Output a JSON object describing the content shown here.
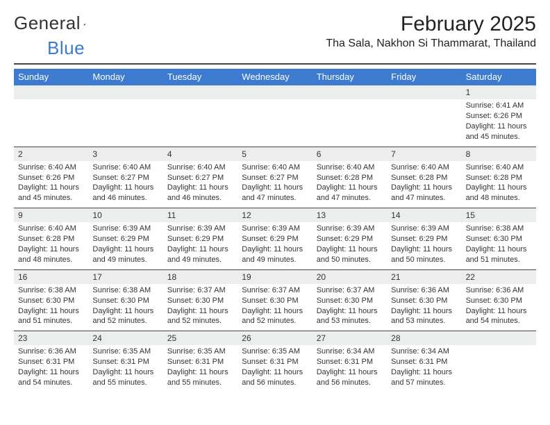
{
  "logo": {
    "text1": "General",
    "text2": "Blue"
  },
  "title": "February 2025",
  "location": "Tha Sala, Nakhon Si Thammarat, Thailand",
  "colors": {
    "headerBar": "#3d7bd0",
    "dayStripe": "#eceded",
    "ruleLine": "#444444",
    "text": "#333333",
    "background": "#ffffff"
  },
  "weekdays": [
    "Sunday",
    "Monday",
    "Tuesday",
    "Wednesday",
    "Thursday",
    "Friday",
    "Saturday"
  ],
  "weeks": [
    [
      {
        "day": "",
        "sunrise": "",
        "sunset": "",
        "daylight": ""
      },
      {
        "day": "",
        "sunrise": "",
        "sunset": "",
        "daylight": ""
      },
      {
        "day": "",
        "sunrise": "",
        "sunset": "",
        "daylight": ""
      },
      {
        "day": "",
        "sunrise": "",
        "sunset": "",
        "daylight": ""
      },
      {
        "day": "",
        "sunrise": "",
        "sunset": "",
        "daylight": ""
      },
      {
        "day": "",
        "sunrise": "",
        "sunset": "",
        "daylight": ""
      },
      {
        "day": "1",
        "sunrise": "Sunrise: 6:41 AM",
        "sunset": "Sunset: 6:26 PM",
        "daylight": "Daylight: 11 hours and 45 minutes."
      }
    ],
    [
      {
        "day": "2",
        "sunrise": "Sunrise: 6:40 AM",
        "sunset": "Sunset: 6:26 PM",
        "daylight": "Daylight: 11 hours and 45 minutes."
      },
      {
        "day": "3",
        "sunrise": "Sunrise: 6:40 AM",
        "sunset": "Sunset: 6:27 PM",
        "daylight": "Daylight: 11 hours and 46 minutes."
      },
      {
        "day": "4",
        "sunrise": "Sunrise: 6:40 AM",
        "sunset": "Sunset: 6:27 PM",
        "daylight": "Daylight: 11 hours and 46 minutes."
      },
      {
        "day": "5",
        "sunrise": "Sunrise: 6:40 AM",
        "sunset": "Sunset: 6:27 PM",
        "daylight": "Daylight: 11 hours and 47 minutes."
      },
      {
        "day": "6",
        "sunrise": "Sunrise: 6:40 AM",
        "sunset": "Sunset: 6:28 PM",
        "daylight": "Daylight: 11 hours and 47 minutes."
      },
      {
        "day": "7",
        "sunrise": "Sunrise: 6:40 AM",
        "sunset": "Sunset: 6:28 PM",
        "daylight": "Daylight: 11 hours and 47 minutes."
      },
      {
        "day": "8",
        "sunrise": "Sunrise: 6:40 AM",
        "sunset": "Sunset: 6:28 PM",
        "daylight": "Daylight: 11 hours and 48 minutes."
      }
    ],
    [
      {
        "day": "9",
        "sunrise": "Sunrise: 6:40 AM",
        "sunset": "Sunset: 6:28 PM",
        "daylight": "Daylight: 11 hours and 48 minutes."
      },
      {
        "day": "10",
        "sunrise": "Sunrise: 6:39 AM",
        "sunset": "Sunset: 6:29 PM",
        "daylight": "Daylight: 11 hours and 49 minutes."
      },
      {
        "day": "11",
        "sunrise": "Sunrise: 6:39 AM",
        "sunset": "Sunset: 6:29 PM",
        "daylight": "Daylight: 11 hours and 49 minutes."
      },
      {
        "day": "12",
        "sunrise": "Sunrise: 6:39 AM",
        "sunset": "Sunset: 6:29 PM",
        "daylight": "Daylight: 11 hours and 49 minutes."
      },
      {
        "day": "13",
        "sunrise": "Sunrise: 6:39 AM",
        "sunset": "Sunset: 6:29 PM",
        "daylight": "Daylight: 11 hours and 50 minutes."
      },
      {
        "day": "14",
        "sunrise": "Sunrise: 6:39 AM",
        "sunset": "Sunset: 6:29 PM",
        "daylight": "Daylight: 11 hours and 50 minutes."
      },
      {
        "day": "15",
        "sunrise": "Sunrise: 6:38 AM",
        "sunset": "Sunset: 6:30 PM",
        "daylight": "Daylight: 11 hours and 51 minutes."
      }
    ],
    [
      {
        "day": "16",
        "sunrise": "Sunrise: 6:38 AM",
        "sunset": "Sunset: 6:30 PM",
        "daylight": "Daylight: 11 hours and 51 minutes."
      },
      {
        "day": "17",
        "sunrise": "Sunrise: 6:38 AM",
        "sunset": "Sunset: 6:30 PM",
        "daylight": "Daylight: 11 hours and 52 minutes."
      },
      {
        "day": "18",
        "sunrise": "Sunrise: 6:37 AM",
        "sunset": "Sunset: 6:30 PM",
        "daylight": "Daylight: 11 hours and 52 minutes."
      },
      {
        "day": "19",
        "sunrise": "Sunrise: 6:37 AM",
        "sunset": "Sunset: 6:30 PM",
        "daylight": "Daylight: 11 hours and 52 minutes."
      },
      {
        "day": "20",
        "sunrise": "Sunrise: 6:37 AM",
        "sunset": "Sunset: 6:30 PM",
        "daylight": "Daylight: 11 hours and 53 minutes."
      },
      {
        "day": "21",
        "sunrise": "Sunrise: 6:36 AM",
        "sunset": "Sunset: 6:30 PM",
        "daylight": "Daylight: 11 hours and 53 minutes."
      },
      {
        "day": "22",
        "sunrise": "Sunrise: 6:36 AM",
        "sunset": "Sunset: 6:30 PM",
        "daylight": "Daylight: 11 hours and 54 minutes."
      }
    ],
    [
      {
        "day": "23",
        "sunrise": "Sunrise: 6:36 AM",
        "sunset": "Sunset: 6:31 PM",
        "daylight": "Daylight: 11 hours and 54 minutes."
      },
      {
        "day": "24",
        "sunrise": "Sunrise: 6:35 AM",
        "sunset": "Sunset: 6:31 PM",
        "daylight": "Daylight: 11 hours and 55 minutes."
      },
      {
        "day": "25",
        "sunrise": "Sunrise: 6:35 AM",
        "sunset": "Sunset: 6:31 PM",
        "daylight": "Daylight: 11 hours and 55 minutes."
      },
      {
        "day": "26",
        "sunrise": "Sunrise: 6:35 AM",
        "sunset": "Sunset: 6:31 PM",
        "daylight": "Daylight: 11 hours and 56 minutes."
      },
      {
        "day": "27",
        "sunrise": "Sunrise: 6:34 AM",
        "sunset": "Sunset: 6:31 PM",
        "daylight": "Daylight: 11 hours and 56 minutes."
      },
      {
        "day": "28",
        "sunrise": "Sunrise: 6:34 AM",
        "sunset": "Sunset: 6:31 PM",
        "daylight": "Daylight: 11 hours and 57 minutes."
      },
      {
        "day": "",
        "sunrise": "",
        "sunset": "",
        "daylight": ""
      }
    ]
  ]
}
